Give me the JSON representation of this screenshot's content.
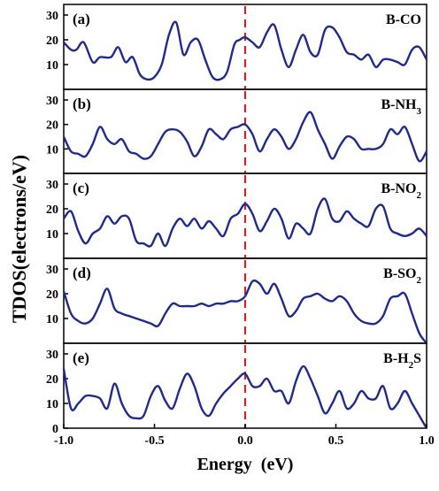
{
  "figure": {
    "ylabel": "TDOS(electrons/eV)",
    "xlabel": "Energy  (eV)",
    "line_color": "#1f2a8c",
    "fermi_color": "#c0282d"
  },
  "chart_data": [
    {
      "type": "line",
      "panel": "(a)",
      "title": "B-CO",
      "ylim": [
        0,
        30
      ],
      "yticks": [
        10,
        20,
        30
      ],
      "xlim": [
        -1.0,
        1.0
      ],
      "fermi_level": 0.0,
      "series": [
        {
          "x": [
            -1.0,
            -0.96,
            -0.93,
            -0.89,
            -0.84,
            -0.8,
            -0.74,
            -0.7,
            -0.66,
            -0.62,
            -0.58,
            -0.54,
            -0.5,
            -0.46,
            -0.42,
            -0.38,
            -0.34,
            -0.3,
            -0.26,
            -0.22,
            -0.18,
            -0.14,
            -0.1,
            -0.06,
            -0.03,
            0.0,
            0.04,
            0.08,
            0.12,
            0.16,
            0.2,
            0.24,
            0.28,
            0.32,
            0.36,
            0.4,
            0.44,
            0.48,
            0.52,
            0.56,
            0.6,
            0.64,
            0.68,
            0.72,
            0.76,
            0.8,
            0.84,
            0.88,
            0.92,
            0.96,
            1.0
          ],
          "y": [
            19,
            16,
            16,
            19,
            11,
            13,
            13,
            17,
            11,
            13,
            6,
            4,
            5,
            10,
            22,
            27,
            14,
            19,
            20,
            12,
            5,
            4,
            7,
            18,
            20,
            21,
            19,
            17,
            23,
            26,
            16,
            9,
            16,
            22,
            15,
            14,
            24,
            25,
            21,
            15,
            14,
            12,
            14,
            9,
            12,
            12,
            11,
            10,
            16,
            17,
            12
          ]
        }
      ]
    },
    {
      "type": "line",
      "panel": "(b)",
      "title": "B-NH3",
      "ylim": [
        0,
        30
      ],
      "yticks": [
        10,
        20,
        30
      ],
      "xlim": [
        -1.0,
        1.0
      ],
      "fermi_level": 0.0,
      "series": [
        {
          "x": [
            -1.0,
            -0.96,
            -0.92,
            -0.88,
            -0.84,
            -0.8,
            -0.76,
            -0.72,
            -0.68,
            -0.64,
            -0.6,
            -0.56,
            -0.52,
            -0.48,
            -0.44,
            -0.4,
            -0.36,
            -0.32,
            -0.28,
            -0.24,
            -0.2,
            -0.16,
            -0.12,
            -0.08,
            -0.04,
            0.0,
            0.04,
            0.08,
            0.12,
            0.16,
            0.2,
            0.24,
            0.28,
            0.32,
            0.36,
            0.4,
            0.44,
            0.48,
            0.52,
            0.56,
            0.6,
            0.64,
            0.68,
            0.72,
            0.76,
            0.8,
            0.84,
            0.88,
            0.92,
            0.96,
            1.0
          ],
          "y": [
            15,
            9,
            8,
            7,
            12,
            19,
            14,
            12,
            14,
            9,
            8,
            6,
            7,
            12,
            17,
            18,
            17,
            13,
            7,
            11,
            18,
            16,
            14,
            18,
            19,
            20,
            16,
            9,
            14,
            18,
            15,
            10,
            14,
            21,
            25,
            18,
            12,
            6,
            11,
            15,
            14,
            10,
            10,
            10,
            12,
            18,
            16,
            19,
            12,
            5,
            9
          ]
        }
      ]
    },
    {
      "type": "line",
      "panel": "(c)",
      "title": "B-NO2",
      "ylim": [
        0,
        30
      ],
      "yticks": [
        10,
        20,
        30
      ],
      "xlim": [
        -1.0,
        1.0
      ],
      "fermi_level": 0.0,
      "series": [
        {
          "x": [
            -1.0,
            -0.96,
            -0.92,
            -0.88,
            -0.84,
            -0.8,
            -0.76,
            -0.72,
            -0.68,
            -0.64,
            -0.6,
            -0.56,
            -0.52,
            -0.48,
            -0.44,
            -0.4,
            -0.36,
            -0.32,
            -0.28,
            -0.24,
            -0.2,
            -0.16,
            -0.12,
            -0.08,
            -0.04,
            0.0,
            0.04,
            0.08,
            0.12,
            0.16,
            0.2,
            0.24,
            0.28,
            0.32,
            0.36,
            0.4,
            0.44,
            0.48,
            0.52,
            0.56,
            0.6,
            0.64,
            0.68,
            0.72,
            0.76,
            0.8,
            0.84,
            0.88,
            0.92,
            0.96,
            1.0
          ],
          "y": [
            16,
            19,
            11,
            6,
            10,
            12,
            17,
            14,
            17,
            16,
            7,
            6,
            5,
            10,
            5,
            12,
            16,
            13,
            16,
            12,
            15,
            12,
            9,
            16,
            18,
            22,
            18,
            11,
            15,
            20,
            16,
            8,
            14,
            12,
            10,
            20,
            24,
            16,
            15,
            19,
            16,
            14,
            13,
            20,
            21,
            12,
            10,
            9,
            10,
            12,
            9
          ]
        }
      ]
    },
    {
      "type": "line",
      "panel": "(d)",
      "title": "B-SO2",
      "ylim": [
        0,
        30
      ],
      "yticks": [
        10,
        20,
        30
      ],
      "xlim": [
        -1.0,
        1.0
      ],
      "fermi_level": 0.0,
      "series": [
        {
          "x": [
            -1.0,
            -0.96,
            -0.92,
            -0.88,
            -0.84,
            -0.8,
            -0.76,
            -0.72,
            -0.68,
            -0.64,
            -0.6,
            -0.56,
            -0.52,
            -0.48,
            -0.44,
            -0.4,
            -0.36,
            -0.32,
            -0.28,
            -0.24,
            -0.2,
            -0.16,
            -0.12,
            -0.08,
            -0.04,
            0.0,
            0.04,
            0.08,
            0.12,
            0.16,
            0.2,
            0.24,
            0.28,
            0.32,
            0.36,
            0.4,
            0.44,
            0.48,
            0.52,
            0.56,
            0.6,
            0.64,
            0.68,
            0.72,
            0.76,
            0.8,
            0.84,
            0.88,
            0.92,
            0.96,
            1.0
          ],
          "y": [
            21,
            12,
            9,
            8,
            10,
            16,
            22,
            14,
            12,
            11,
            10,
            9,
            8,
            7,
            12,
            16,
            15,
            15,
            15,
            16,
            15,
            16,
            16,
            17,
            17,
            19,
            25,
            24,
            20,
            24,
            18,
            11,
            13,
            18,
            19,
            20,
            18,
            17,
            19,
            17,
            12,
            9,
            8,
            8,
            11,
            18,
            19,
            20,
            12,
            4,
            0
          ]
        }
      ]
    },
    {
      "type": "line",
      "panel": "(e)",
      "title": "B-H2S",
      "ylim": [
        0,
        30
      ],
      "yticks": [
        0,
        10,
        20,
        30
      ],
      "xlim": [
        -1.0,
        1.0
      ],
      "xticks": [
        -1.0,
        -0.5,
        0.0,
        0.5,
        1.0
      ],
      "fermi_level": 0.0,
      "series": [
        {
          "x": [
            -1.0,
            -0.96,
            -0.92,
            -0.88,
            -0.84,
            -0.8,
            -0.76,
            -0.72,
            -0.68,
            -0.64,
            -0.6,
            -0.56,
            -0.52,
            -0.48,
            -0.44,
            -0.4,
            -0.36,
            -0.32,
            -0.28,
            -0.24,
            -0.2,
            -0.16,
            -0.12,
            -0.08,
            -0.04,
            0.0,
            0.04,
            0.08,
            0.12,
            0.16,
            0.2,
            0.24,
            0.28,
            0.32,
            0.36,
            0.4,
            0.44,
            0.48,
            0.52,
            0.56,
            0.6,
            0.64,
            0.68,
            0.72,
            0.76,
            0.8,
            0.84,
            0.88,
            0.92,
            0.96,
            1.0
          ],
          "y": [
            24,
            8,
            10,
            13,
            13,
            12,
            8,
            18,
            10,
            5,
            4,
            5,
            13,
            17,
            11,
            8,
            16,
            22,
            17,
            8,
            5,
            10,
            14,
            17,
            20,
            22,
            17,
            17,
            20,
            15,
            15,
            10,
            19,
            25,
            20,
            13,
            6,
            10,
            15,
            8,
            10,
            15,
            12,
            12,
            17,
            8,
            10,
            15,
            10,
            5,
            0
          ]
        }
      ]
    }
  ]
}
